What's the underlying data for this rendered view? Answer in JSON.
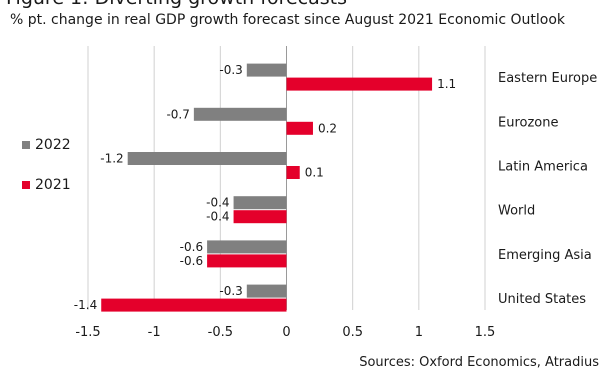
{
  "chart_data": {
    "type": "bar",
    "orientation": "horizontal",
    "title": "Figure 1: Diverting growth forecasts",
    "subtitle": "% pt. change in real GDP growth forecast since August 2021 Economic Outlook",
    "source": "Sources: Oxford Economics, Atradius",
    "categories": [
      "Eastern Europe",
      "Eurozone",
      "Latin America",
      "World",
      "Emerging Asia",
      "United States"
    ],
    "series": [
      {
        "name": "2022",
        "color": "#808080",
        "values": [
          -0.3,
          -0.7,
          -1.2,
          -0.4,
          -0.6,
          -0.3
        ]
      },
      {
        "name": "2021",
        "color": "#e4002b",
        "values": [
          1.1,
          0.2,
          0.1,
          -0.4,
          -0.6,
          -1.4
        ]
      }
    ],
    "x_ticks": [
      -1.5,
      -1,
      -0.5,
      0,
      0.5,
      1,
      1.5
    ],
    "x_tick_labels": [
      "-1.5",
      "-1",
      "-0.5",
      "0",
      "0.5",
      "1",
      "1.5"
    ],
    "xlim": [
      -1.5,
      1.5
    ],
    "grid": "vertical",
    "legend_position": "left"
  }
}
